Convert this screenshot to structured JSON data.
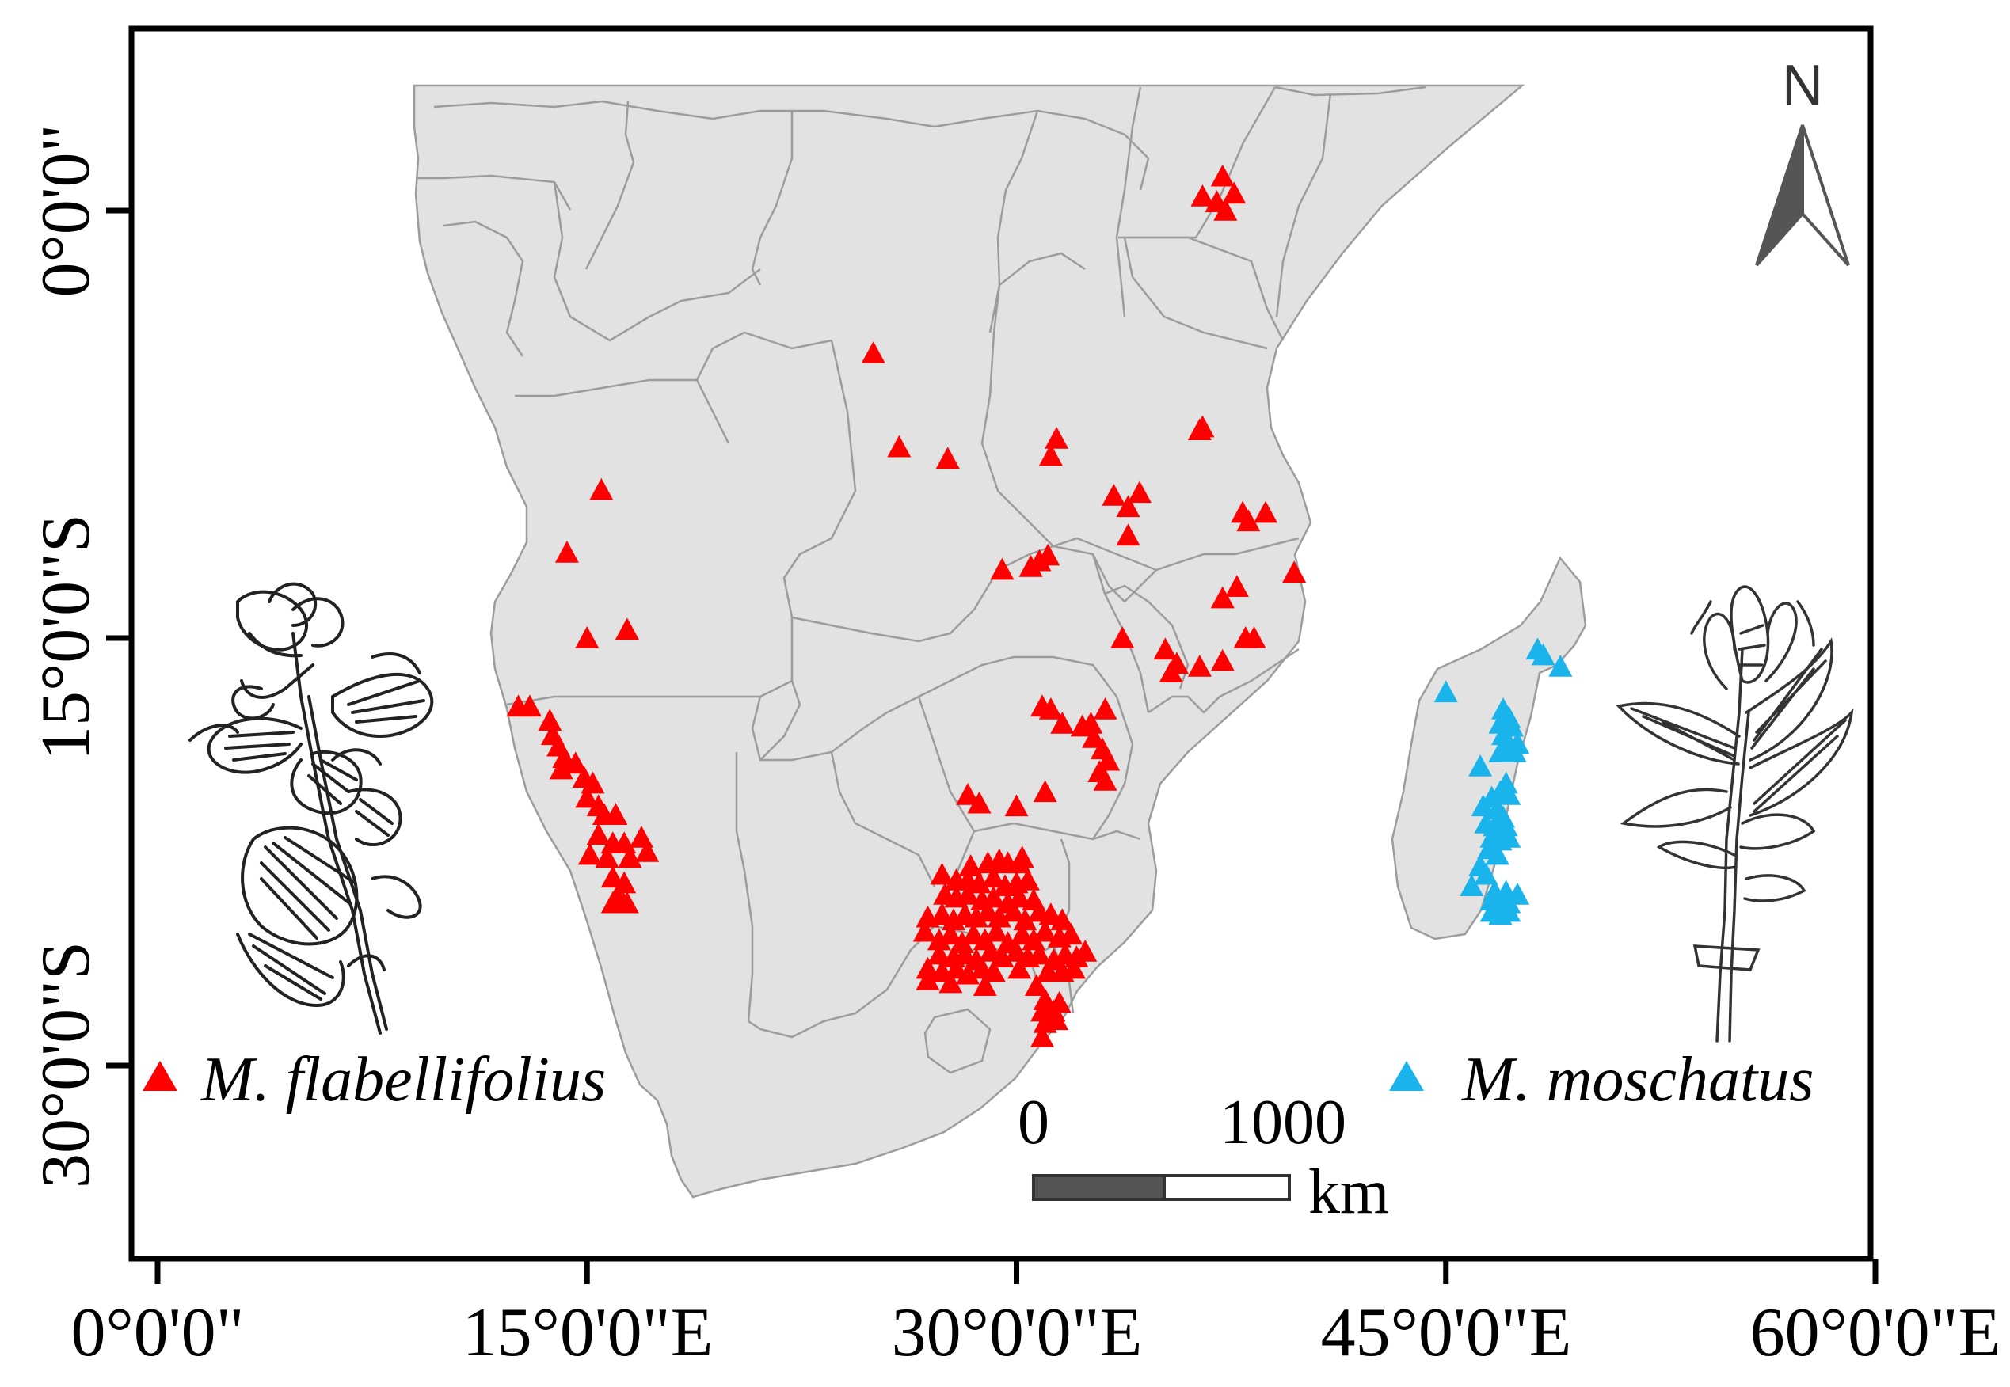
{
  "map": {
    "x_ticks": [
      "0°0'0\"",
      "15°0'0\"E",
      "30°0'0\"E",
      "45°0'0\"E",
      "60°0'0\"E"
    ],
    "y_ticks": [
      "0°0'0\"",
      "15°0'0\"S",
      "30°0'0\"S"
    ],
    "colors": {
      "land": "#e2e2e2",
      "border": "#9c9c9c",
      "flabellifolius": "#ff0000",
      "moschatus": "#19b4ec",
      "frame": "#000000"
    }
  },
  "legend": {
    "flabellifolius": "M. flabellifolius",
    "moschatus": "M. moschatus"
  },
  "scale_bar": {
    "start_label": "0",
    "end_label": "1000",
    "unit": "km"
  },
  "north_arrow": {
    "label": "N",
    "icon": "north-arrow-icon"
  },
  "illustrations": [
    "flower-sketch-left",
    "leaf-sketch-right"
  ],
  "occurrences": {
    "flabellifolius": [
      [
        37.2,
        1.2
      ],
      [
        36.5,
        0.5
      ],
      [
        37.0,
        0.3
      ],
      [
        37.6,
        0.6
      ],
      [
        37.3,
        0.0
      ],
      [
        25.0,
        -5.0
      ],
      [
        25.9,
        -8.3
      ],
      [
        27.6,
        -8.7
      ],
      [
        31.4,
        -8.0
      ],
      [
        31.2,
        -8.6
      ],
      [
        36.5,
        -7.6
      ],
      [
        36.4,
        -7.7
      ],
      [
        15.5,
        -9.8
      ],
      [
        14.3,
        -12.0
      ],
      [
        15.0,
        -15.0
      ],
      [
        16.4,
        -14.7
      ],
      [
        33.4,
        -10.0
      ],
      [
        33.9,
        -10.4
      ],
      [
        34.3,
        -9.9
      ],
      [
        33.9,
        -11.4
      ],
      [
        37.9,
        -10.6
      ],
      [
        38.1,
        -10.9
      ],
      [
        38.7,
        -10.6
      ],
      [
        29.5,
        -12.6
      ],
      [
        30.5,
        -12.5
      ],
      [
        30.8,
        -12.3
      ],
      [
        31.1,
        -12.1
      ],
      [
        37.7,
        -13.2
      ],
      [
        37.2,
        -13.6
      ],
      [
        39.7,
        -12.7
      ],
      [
        33.7,
        -15.0
      ],
      [
        35.2,
        -15.4
      ],
      [
        35.6,
        -15.9
      ],
      [
        35.4,
        -16.2
      ],
      [
        36.4,
        -16.0
      ],
      [
        37.2,
        -15.8
      ],
      [
        38.0,
        -15.0
      ],
      [
        38.3,
        -15.0
      ],
      [
        12.6,
        -17.4
      ],
      [
        13.0,
        -17.4
      ],
      [
        13.7,
        -17.9
      ],
      [
        13.8,
        -18.4
      ],
      [
        14.0,
        -18.8
      ],
      [
        14.2,
        -19.2
      ],
      [
        14.6,
        -19.4
      ],
      [
        14.1,
        -19.6
      ],
      [
        14.9,
        -19.9
      ],
      [
        15.2,
        -20.1
      ],
      [
        15.0,
        -20.6
      ],
      [
        15.4,
        -20.9
      ],
      [
        15.6,
        -21.2
      ],
      [
        16.0,
        -21.2
      ],
      [
        15.4,
        -21.9
      ],
      [
        15.9,
        -22.2
      ],
      [
        16.3,
        -22.2
      ],
      [
        15.1,
        -22.6
      ],
      [
        15.7,
        -22.7
      ],
      [
        16.5,
        -22.7
      ],
      [
        16.9,
        -22.0
      ],
      [
        17.1,
        -22.5
      ],
      [
        15.9,
        -23.4
      ],
      [
        16.3,
        -23.6
      ],
      [
        16.1,
        -24.0
      ],
      [
        15.9,
        -24.3
      ],
      [
        16.4,
        -24.3
      ],
      [
        30.9,
        -17.4
      ],
      [
        31.2,
        -17.5
      ],
      [
        31.6,
        -18.0
      ],
      [
        32.3,
        -18.1
      ],
      [
        32.6,
        -18.0
      ],
      [
        33.1,
        -17.5
      ],
      [
        32.7,
        -18.5
      ],
      [
        33.0,
        -18.9
      ],
      [
        33.2,
        -19.3
      ],
      [
        32.9,
        -19.7
      ],
      [
        33.1,
        -20.0
      ],
      [
        28.3,
        -20.5
      ],
      [
        28.7,
        -20.8
      ],
      [
        30.0,
        -20.9
      ],
      [
        31.0,
        -20.4
      ],
      [
        28.4,
        -23.0
      ],
      [
        29.0,
        -22.9
      ],
      [
        29.4,
        -22.8
      ],
      [
        29.7,
        -22.9
      ],
      [
        30.1,
        -22.9
      ],
      [
        30.2,
        -22.7
      ],
      [
        27.4,
        -23.3
      ],
      [
        27.9,
        -23.5
      ],
      [
        28.3,
        -23.5
      ],
      [
        28.7,
        -23.6
      ],
      [
        29.2,
        -23.4
      ],
      [
        29.6,
        -23.7
      ],
      [
        30.0,
        -23.6
      ],
      [
        30.4,
        -23.5
      ],
      [
        27.5,
        -24.0
      ],
      [
        27.9,
        -24.1
      ],
      [
        28.3,
        -24.0
      ],
      [
        28.8,
        -24.2
      ],
      [
        29.2,
        -24.1
      ],
      [
        29.7,
        -24.3
      ],
      [
        30.1,
        -24.1
      ],
      [
        30.6,
        -24.2
      ],
      [
        26.9,
        -24.8
      ],
      [
        27.4,
        -24.7
      ],
      [
        27.8,
        -24.9
      ],
      [
        28.2,
        -24.7
      ],
      [
        28.6,
        -24.8
      ],
      [
        29.0,
        -24.6
      ],
      [
        29.4,
        -24.8
      ],
      [
        29.9,
        -24.6
      ],
      [
        30.3,
        -24.9
      ],
      [
        30.8,
        -24.6
      ],
      [
        31.2,
        -24.7
      ],
      [
        31.6,
        -24.9
      ],
      [
        26.8,
        -25.3
      ],
      [
        27.3,
        -25.6
      ],
      [
        27.7,
        -25.4
      ],
      [
        28.1,
        -25.7
      ],
      [
        28.5,
        -25.4
      ],
      [
        28.9,
        -25.6
      ],
      [
        29.3,
        -25.3
      ],
      [
        29.7,
        -25.7
      ],
      [
        30.2,
        -25.4
      ],
      [
        30.6,
        -25.6
      ],
      [
        31.0,
        -25.3
      ],
      [
        31.5,
        -25.5
      ],
      [
        31.9,
        -25.4
      ],
      [
        27.3,
        -26.1
      ],
      [
        27.8,
        -26.2
      ],
      [
        28.2,
        -26.1
      ],
      [
        28.6,
        -26.3
      ],
      [
        29.1,
        -26.0
      ],
      [
        29.5,
        -26.2
      ],
      [
        30.0,
        -26.0
      ],
      [
        30.4,
        -26.2
      ],
      [
        30.8,
        -26.1
      ],
      [
        31.3,
        -26.3
      ],
      [
        31.7,
        -26.1
      ],
      [
        32.1,
        -26.2
      ],
      [
        32.4,
        -26.0
      ],
      [
        26.9,
        -26.6
      ],
      [
        27.4,
        -26.7
      ],
      [
        27.9,
        -26.6
      ],
      [
        28.3,
        -26.8
      ],
      [
        28.8,
        -26.6
      ],
      [
        29.2,
        -26.7
      ],
      [
        30.1,
        -26.6
      ],
      [
        31.1,
        -26.7
      ],
      [
        31.6,
        -26.7
      ],
      [
        32.0,
        -26.6
      ],
      [
        26.9,
        -27.0
      ],
      [
        27.7,
        -27.1
      ],
      [
        28.9,
        -27.2
      ],
      [
        30.7,
        -27.2
      ],
      [
        31.0,
        -27.7
      ],
      [
        31.5,
        -27.8
      ],
      [
        30.9,
        -28.1
      ],
      [
        31.3,
        -28.1
      ],
      [
        31.0,
        -28.5
      ],
      [
        31.4,
        -28.4
      ],
      [
        30.9,
        -29.0
      ]
    ],
    "moschatus": [
      [
        48.2,
        -15.4
      ],
      [
        48.4,
        -15.6
      ],
      [
        49.0,
        -16.0
      ],
      [
        45.0,
        -16.9
      ],
      [
        47.0,
        -17.5
      ],
      [
        47.2,
        -17.8
      ],
      [
        46.9,
        -18.0
      ],
      [
        47.3,
        -18.1
      ],
      [
        47.0,
        -18.4
      ],
      [
        47.2,
        -18.7
      ],
      [
        47.5,
        -18.7
      ],
      [
        46.9,
        -19.0
      ],
      [
        47.4,
        -19.0
      ],
      [
        46.2,
        -19.5
      ],
      [
        47.1,
        -20.1
      ],
      [
        46.9,
        -20.4
      ],
      [
        47.2,
        -20.5
      ],
      [
        46.6,
        -20.6
      ],
      [
        46.3,
        -20.9
      ],
      [
        46.8,
        -21.0
      ],
      [
        47.0,
        -21.3
      ],
      [
        46.4,
        -21.5
      ],
      [
        46.7,
        -21.6
      ],
      [
        47.1,
        -21.6
      ],
      [
        46.6,
        -22.0
      ],
      [
        46.9,
        -22.1
      ],
      [
        47.2,
        -22.0
      ],
      [
        46.5,
        -22.4
      ],
      [
        46.8,
        -22.6
      ],
      [
        46.2,
        -23.0
      ],
      [
        46.4,
        -23.3
      ],
      [
        45.9,
        -23.7
      ],
      [
        46.7,
        -23.9
      ],
      [
        47.1,
        -23.9
      ],
      [
        47.5,
        -24.0
      ],
      [
        46.6,
        -24.2
      ],
      [
        46.9,
        -24.3
      ],
      [
        47.2,
        -24.3
      ],
      [
        46.6,
        -24.6
      ],
      [
        46.9,
        -24.7
      ],
      [
        47.2,
        -24.6
      ]
    ]
  }
}
